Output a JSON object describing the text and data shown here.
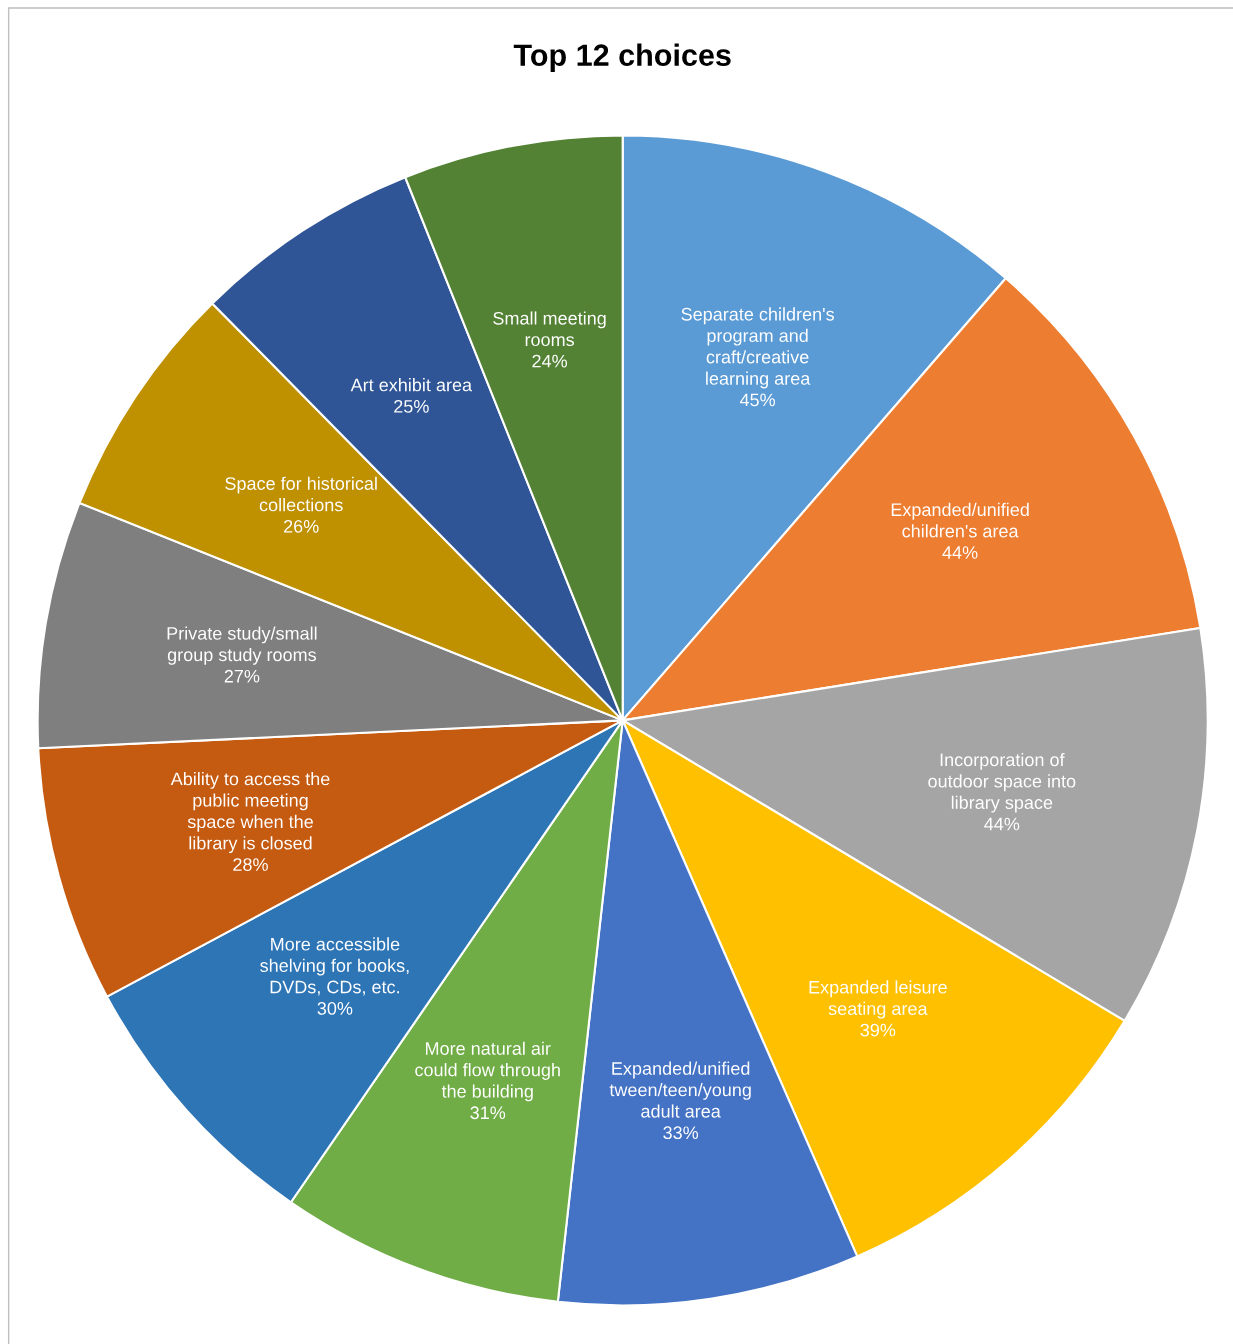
{
  "chart_data": {
    "type": "pie",
    "title": "Top 12 choices",
    "categories": [
      "Separate children's\nprogram and\ncraft/creative\nlearning area",
      "Expanded/unified\nchildren's area",
      "Incorporation of\noutdoor space into\nlibrary space",
      "Expanded leisure\nseating area",
      "Expanded/unified\ntween/teen/young\nadult area",
      "More natural air\ncould flow through\nthe building",
      "More accessible\nshelving for books,\nDVDs, CDs, etc.",
      "Ability to access the\npublic meeting\nspace when the\nlibrary is closed",
      "Private study/small\ngroup study rooms",
      "Space for historical\ncollections",
      "Art exhibit area",
      "Small meeting\nrooms"
    ],
    "values": [
      45,
      44,
      44,
      39,
      33,
      31,
      30,
      28,
      27,
      26,
      25,
      24
    ],
    "value_labels": [
      "45%",
      "44%",
      "44%",
      "39%",
      "33%",
      "31%",
      "30%",
      "28%",
      "27%",
      "26%",
      "25%",
      "24%"
    ],
    "colors": [
      "#5b9bd5",
      "#ed7d31",
      "#a5a5a5",
      "#ffc000",
      "#4472c4",
      "#70ad47",
      "#2e75b6",
      "#c55a11",
      "#7f7f7f",
      "#bf9000",
      "#2f5597",
      "#548235"
    ],
    "legend": false
  }
}
